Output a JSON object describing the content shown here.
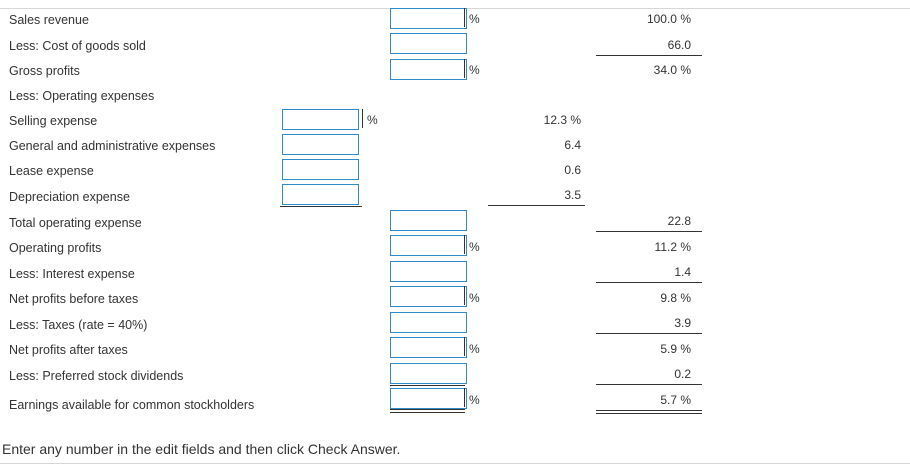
{
  "rows": [
    {
      "label": "Sales revenue",
      "pct": "%",
      "col3": "100.0 %"
    },
    {
      "label": "Less: Cost of goods sold",
      "col3": "66.0"
    },
    {
      "label": "Gross profits",
      "pct": "%",
      "col3": "34.0 %"
    },
    {
      "label": "Less: Operating expenses"
    },
    {
      "label": "Selling expense",
      "pct": "%",
      "col2": "12.3 %"
    },
    {
      "label": "General and administrative expenses",
      "col2": "6.4"
    },
    {
      "label": "Lease expense",
      "col2": "0.6"
    },
    {
      "label": "Depreciation expense",
      "col2": "3.5"
    },
    {
      "label": "Total operating expense",
      "col3": "22.8"
    },
    {
      "label": "Operating profits",
      "pct": "%",
      "col3": "11.2 %"
    },
    {
      "label": "Less: Interest expense",
      "col3": "1.4"
    },
    {
      "label": "Net profits before taxes",
      "pct": "%",
      "col3": "9.8 %"
    },
    {
      "label": "Less: Taxes (rate = 40%)",
      "col3": "3.9"
    },
    {
      "label": "Net profits after taxes",
      "pct": "%",
      "col3": "5.9 %"
    },
    {
      "label": "Less: Preferred stock dividends",
      "col3": "0.2"
    },
    {
      "label": "Earnings available for common stockholders",
      "pct": "%",
      "col3": "5.7 %"
    }
  ],
  "inputs": [
    {
      "name": "sales-revenue-input",
      "value": ""
    },
    {
      "name": "cost-of-goods-sold-input",
      "value": ""
    },
    {
      "name": "gross-profits-input",
      "value": ""
    },
    {
      "name": "selling-expense-input",
      "value": ""
    },
    {
      "name": "general-admin-expense-input",
      "value": ""
    },
    {
      "name": "lease-expense-input",
      "value": ""
    },
    {
      "name": "depreciation-expense-input",
      "value": ""
    },
    {
      "name": "total-operating-expense-input",
      "value": ""
    },
    {
      "name": "operating-profits-input",
      "value": ""
    },
    {
      "name": "interest-expense-input",
      "value": ""
    },
    {
      "name": "net-profits-before-taxes-input",
      "value": ""
    },
    {
      "name": "taxes-input",
      "value": ""
    },
    {
      "name": "net-profits-after-taxes-input",
      "value": ""
    },
    {
      "name": "preferred-dividends-input",
      "value": ""
    },
    {
      "name": "earnings-common-input",
      "value": ""
    }
  ],
  "footer": {
    "instruction": "Enter any number in the edit fields and then click Check Answer."
  },
  "colors": {
    "input_border": "#2f8bc9",
    "text": "#333333",
    "rule": "#d6d6d6"
  }
}
